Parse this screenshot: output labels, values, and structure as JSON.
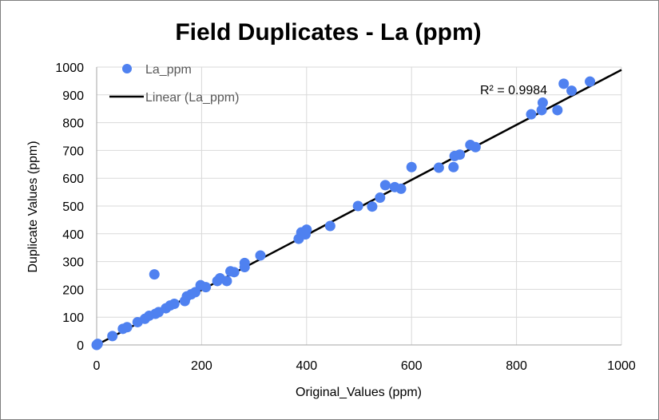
{
  "chart_data": {
    "type": "scatter",
    "title": "Field Duplicates  - La (ppm)",
    "xlabel": "Original_Values (ppm)",
    "ylabel": "Duplicate Values (ppm)",
    "xlim": [
      0,
      1000
    ],
    "ylim": [
      0,
      1000
    ],
    "x_ticks": [
      "0",
      "200",
      "400",
      "600",
      "800",
      "1000"
    ],
    "y_ticks": [
      "0",
      "100",
      "200",
      "300",
      "400",
      "500",
      "600",
      "700",
      "800",
      "900",
      "1000"
    ],
    "grid": true,
    "legend_position": "top-left",
    "series": [
      {
        "name": "La_ppm",
        "color": "#4f81f0",
        "points": [
          [
            0,
            0
          ],
          [
            2,
            4
          ],
          [
            30,
            32
          ],
          [
            50,
            58
          ],
          [
            58,
            64
          ],
          [
            78,
            82
          ],
          [
            92,
            94
          ],
          [
            100,
            105
          ],
          [
            110,
            254
          ],
          [
            112,
            112
          ],
          [
            118,
            118
          ],
          [
            132,
            132
          ],
          [
            140,
            142
          ],
          [
            148,
            148
          ],
          [
            168,
            158
          ],
          [
            172,
            175
          ],
          [
            180,
            182
          ],
          [
            188,
            190
          ],
          [
            198,
            215
          ],
          [
            208,
            208
          ],
          [
            230,
            230
          ],
          [
            235,
            240
          ],
          [
            248,
            230
          ],
          [
            255,
            265
          ],
          [
            262,
            262
          ],
          [
            282,
            280
          ],
          [
            282,
            295
          ],
          [
            312,
            322
          ],
          [
            385,
            382
          ],
          [
            390,
            405
          ],
          [
            398,
            398
          ],
          [
            400,
            415
          ],
          [
            445,
            428
          ],
          [
            498,
            500
          ],
          [
            525,
            498
          ],
          [
            540,
            530
          ],
          [
            550,
            575
          ],
          [
            568,
            568
          ],
          [
            580,
            562
          ],
          [
            600,
            640
          ],
          [
            652,
            638
          ],
          [
            680,
            640
          ],
          [
            682,
            680
          ],
          [
            692,
            685
          ],
          [
            712,
            720
          ],
          [
            722,
            712
          ],
          [
            828,
            830
          ],
          [
            848,
            845
          ],
          [
            850,
            872
          ],
          [
            878,
            845
          ],
          [
            890,
            940
          ],
          [
            905,
            915
          ],
          [
            940,
            948
          ]
        ]
      },
      {
        "name": "Linear (La_ppm)",
        "color": "#000000",
        "line": [
          [
            0,
            0
          ],
          [
            1000,
            990
          ]
        ]
      }
    ],
    "annotations": [
      {
        "text": "R² = 0.9984"
      }
    ]
  }
}
